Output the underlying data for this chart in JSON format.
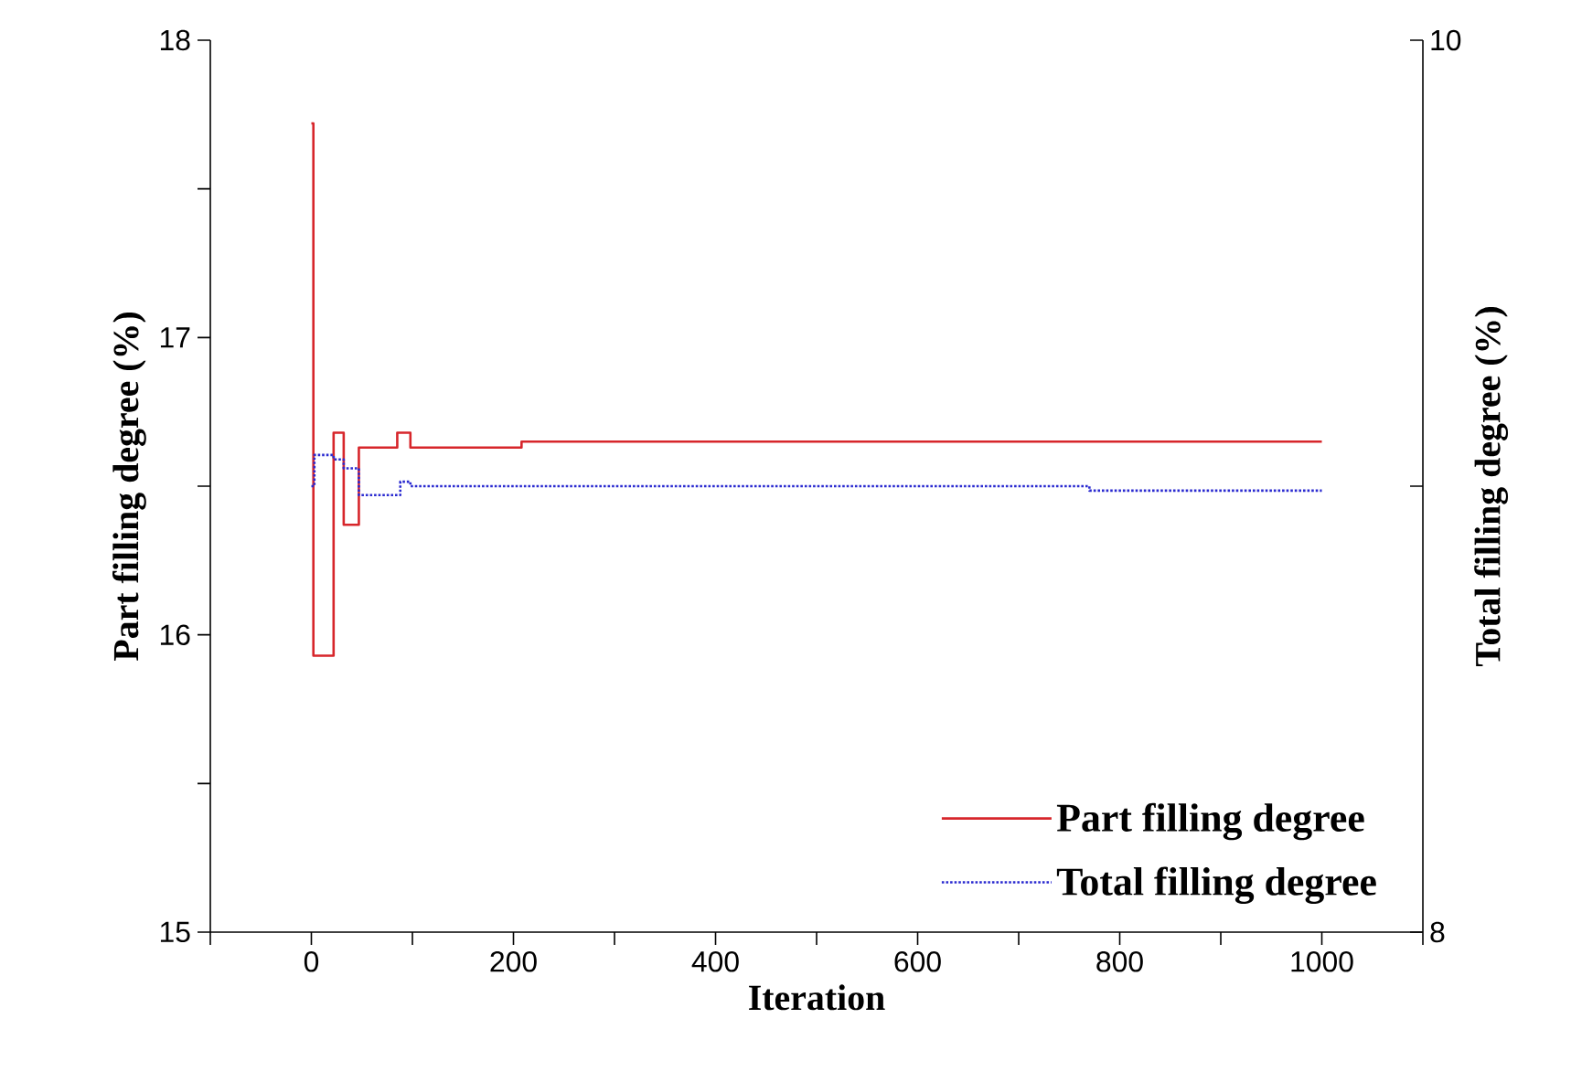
{
  "chart_data": {
    "type": "step",
    "xlabel": "Iteration",
    "ylabel": "Part filling degree (%)",
    "y2label": "Total filling degree (%)",
    "xlim": [
      -100,
      1100
    ],
    "ylim": [
      15,
      18
    ],
    "y2lim": [
      8,
      10
    ],
    "xticks": [
      {
        "value": -100,
        "label": null
      },
      0,
      {
        "value": 100,
        "label": null
      },
      200,
      {
        "value": 300,
        "label": null
      },
      400,
      {
        "value": 500,
        "label": null
      },
      600,
      {
        "value": 700,
        "label": null
      },
      800,
      {
        "value": 900,
        "label": null
      },
      1000,
      {
        "value": 1100,
        "label": null
      }
    ],
    "yticks": [
      15,
      {
        "value": 15.5,
        "label": null
      },
      16,
      {
        "value": 16.5,
        "label": null
      },
      17,
      {
        "value": 17.5,
        "label": null
      },
      18
    ],
    "y2ticks": [
      8,
      {
        "value": 9,
        "label": null
      },
      10
    ],
    "legend": "bottom right",
    "series": [
      {
        "name": "Part filling degree",
        "color": "#d7262b",
        "line_style": "solid",
        "x": [
          0,
          2,
          22,
          32,
          47,
          85,
          98,
          208,
          1000
        ],
        "values": [
          17.72,
          15.93,
          16.68,
          16.37,
          16.63,
          16.68,
          16.63,
          16.65,
          16.65
        ]
      },
      {
        "name": "Total filling degree",
        "color": "#2a2ad0",
        "line_style": "dotted",
        "axis": "y2",
        "x": [
          0,
          3,
          22,
          32,
          47,
          88,
          98,
          770,
          1000
        ],
        "values": [
          9.0,
          9.07,
          9.06,
          9.04,
          8.98,
          9.01,
          9.0,
          8.99,
          8.99
        ]
      }
    ]
  }
}
